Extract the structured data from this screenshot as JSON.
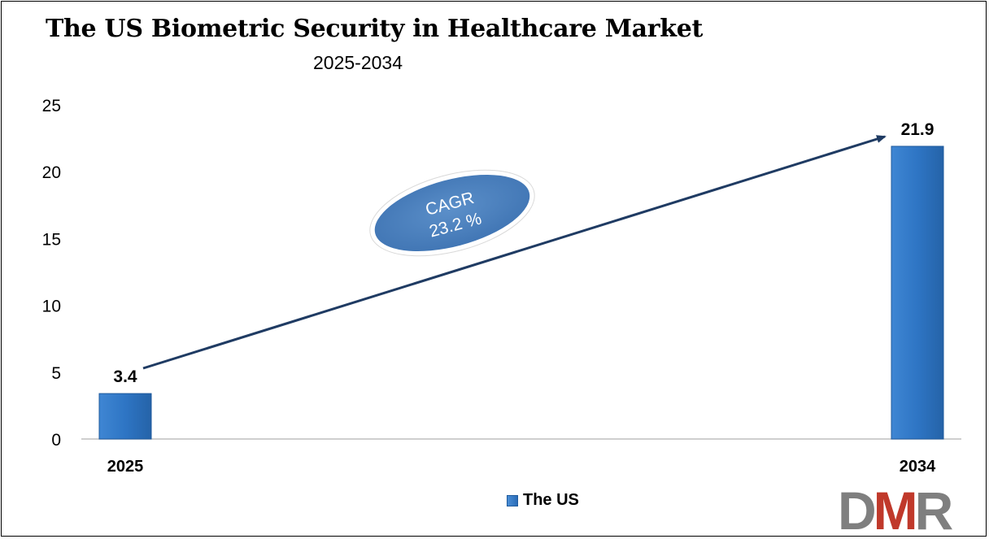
{
  "title": "The US Biometric Security in Healthcare Market",
  "subtitle": "2025-2034",
  "chart_data": {
    "type": "bar",
    "categories": [
      "2025",
      "2034"
    ],
    "series": [
      {
        "name": "The US",
        "values": [
          3.4,
          21.9
        ],
        "color": "#2e75c4"
      }
    ],
    "data_labels": [
      "3.4",
      "21.9"
    ],
    "ylim": [
      0,
      25
    ],
    "yticks": [
      0,
      5,
      10,
      15,
      20,
      25
    ],
    "grid": false,
    "legend_position": "bottom-center",
    "annotation": {
      "line1": "CAGR",
      "line2": "23.2 %"
    }
  },
  "legend": {
    "label": "The US"
  },
  "logo": {
    "text": "DMR",
    "colors": [
      "#7f7f7f",
      "#c0392b",
      "#7f7f7f"
    ]
  }
}
